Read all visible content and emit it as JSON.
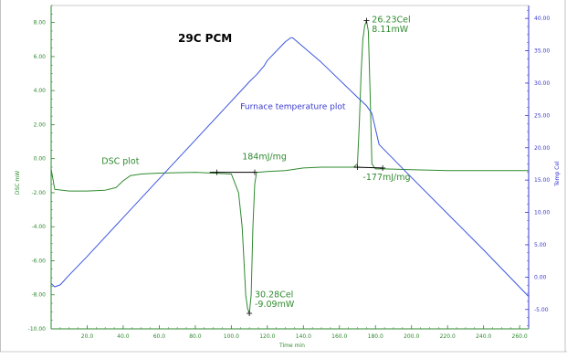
{
  "colors": {
    "dsc": "#2f8a2f",
    "temperature": "#3a55e0",
    "left_axis": "#2f8a2f",
    "right_axis": "#3a3ad0",
    "bottom_axis": "#2f8a2f",
    "baseline_markers": "#000000"
  },
  "chart_data": {
    "type": "line",
    "title": "29C PCM",
    "xlabel": "Time min",
    "ylabel_left": "DSC mW",
    "ylabel_right": "Temp Cel",
    "xlim": [
      0,
      265
    ],
    "ylim_left": [
      -10,
      9
    ],
    "ylim_right": [
      -8,
      42
    ],
    "grid": false,
    "x_ticks": [
      "20.0",
      "40.0",
      "60.0",
      "80.0",
      "100.0",
      "120.0",
      "140.0",
      "160.0",
      "180.0",
      "200.0",
      "220.0",
      "240.0",
      "260.0"
    ],
    "x_tick_values": [
      20,
      40,
      60,
      80,
      100,
      120,
      140,
      160,
      180,
      200,
      220,
      240,
      260
    ],
    "y_left_ticks": [
      "8.00",
      "6.00",
      "4.00",
      "2.00",
      "0.00",
      "-2.00",
      "-4.00",
      "-6.00",
      "-8.00",
      "-10.00"
    ],
    "y_left_tick_values": [
      8,
      6,
      4,
      2,
      0,
      -2,
      -4,
      -6,
      -8,
      -10
    ],
    "y_right_ticks": [
      "40.00",
      "35.00",
      "30.00",
      "25.00",
      "20.00",
      "15.00",
      "10.00",
      "5.00",
      "0.00",
      "-5.00"
    ],
    "y_right_tick_values": [
      40,
      35,
      30,
      25,
      20,
      15,
      10,
      5,
      0,
      -5
    ],
    "series": [
      {
        "name": "DSC plot",
        "axis": "left",
        "x": [
          0,
          2,
          10,
          20,
          30,
          36,
          40,
          44,
          50,
          60,
          80,
          100,
          104,
          106,
          107,
          108,
          109,
          110,
          111,
          112,
          113,
          114,
          115,
          120,
          130,
          140,
          150,
          160,
          168,
          170,
          171,
          172,
          173,
          174,
          175,
          176,
          177,
          178,
          180,
          185,
          200,
          220,
          240,
          265
        ],
        "y": [
          -0.6,
          -1.8,
          -1.9,
          -1.9,
          -1.85,
          -1.7,
          -1.3,
          -1.0,
          -0.9,
          -0.85,
          -0.8,
          -0.9,
          -2.0,
          -4.0,
          -6.0,
          -8.0,
          -8.8,
          -9.09,
          -8.0,
          -4.0,
          -1.5,
          -0.8,
          -0.8,
          -0.75,
          -0.7,
          -0.55,
          -0.5,
          -0.5,
          -0.5,
          -0.3,
          2.0,
          5.0,
          7.0,
          7.8,
          8.11,
          7.5,
          4.0,
          -0.3,
          -0.6,
          -0.6,
          -0.65,
          -0.7,
          -0.7,
          -0.7
        ]
      },
      {
        "name": "Furnace temperature plot",
        "axis": "right",
        "x": [
          0,
          2,
          5,
          10,
          20,
          40,
          60,
          80,
          100,
          110,
          114,
          118,
          120,
          130,
          133,
          134,
          150,
          170,
          175,
          178,
          182,
          200,
          220,
          240,
          265
        ],
        "y": [
          -1.0,
          -1.5,
          -1.2,
          0.3,
          3.2,
          9.2,
          15.2,
          21.2,
          27.2,
          30.2,
          31.3,
          32.6,
          33.5,
          36.4,
          37.0,
          37.0,
          33.2,
          27.8,
          26.5,
          25.3,
          20.5,
          15.4,
          9.8,
          4.2,
          -3.0
        ]
      }
    ],
    "annotations": [
      {
        "text": "DSC plot",
        "x": 28,
        "y": -0.3,
        "axis": "left",
        "color": "dsc"
      },
      {
        "text": "Furnace temperature plot",
        "x": 105,
        "y": 2.9,
        "axis": "left",
        "color": "temperature"
      },
      {
        "text": "184mJ/mg",
        "x": 106,
        "y": -0.05,
        "axis": "left",
        "color": "dsc"
      },
      {
        "text": "30.28Cel",
        "x": 113,
        "y": -8.15,
        "axis": "left",
        "color": "dsc"
      },
      {
        "text": "-9.09mW",
        "x": 113,
        "y": -8.7,
        "axis": "left",
        "color": "dsc"
      },
      {
        "text": "26.23Cel",
        "x": 178,
        "y": 8.0,
        "axis": "left",
        "color": "dsc"
      },
      {
        "text": "8.11mW",
        "x": 178,
        "y": 7.45,
        "axis": "left",
        "color": "dsc"
      },
      {
        "text": "-177mJ/mg",
        "x": 173,
        "y": -1.25,
        "axis": "left",
        "color": "dsc"
      }
    ]
  }
}
